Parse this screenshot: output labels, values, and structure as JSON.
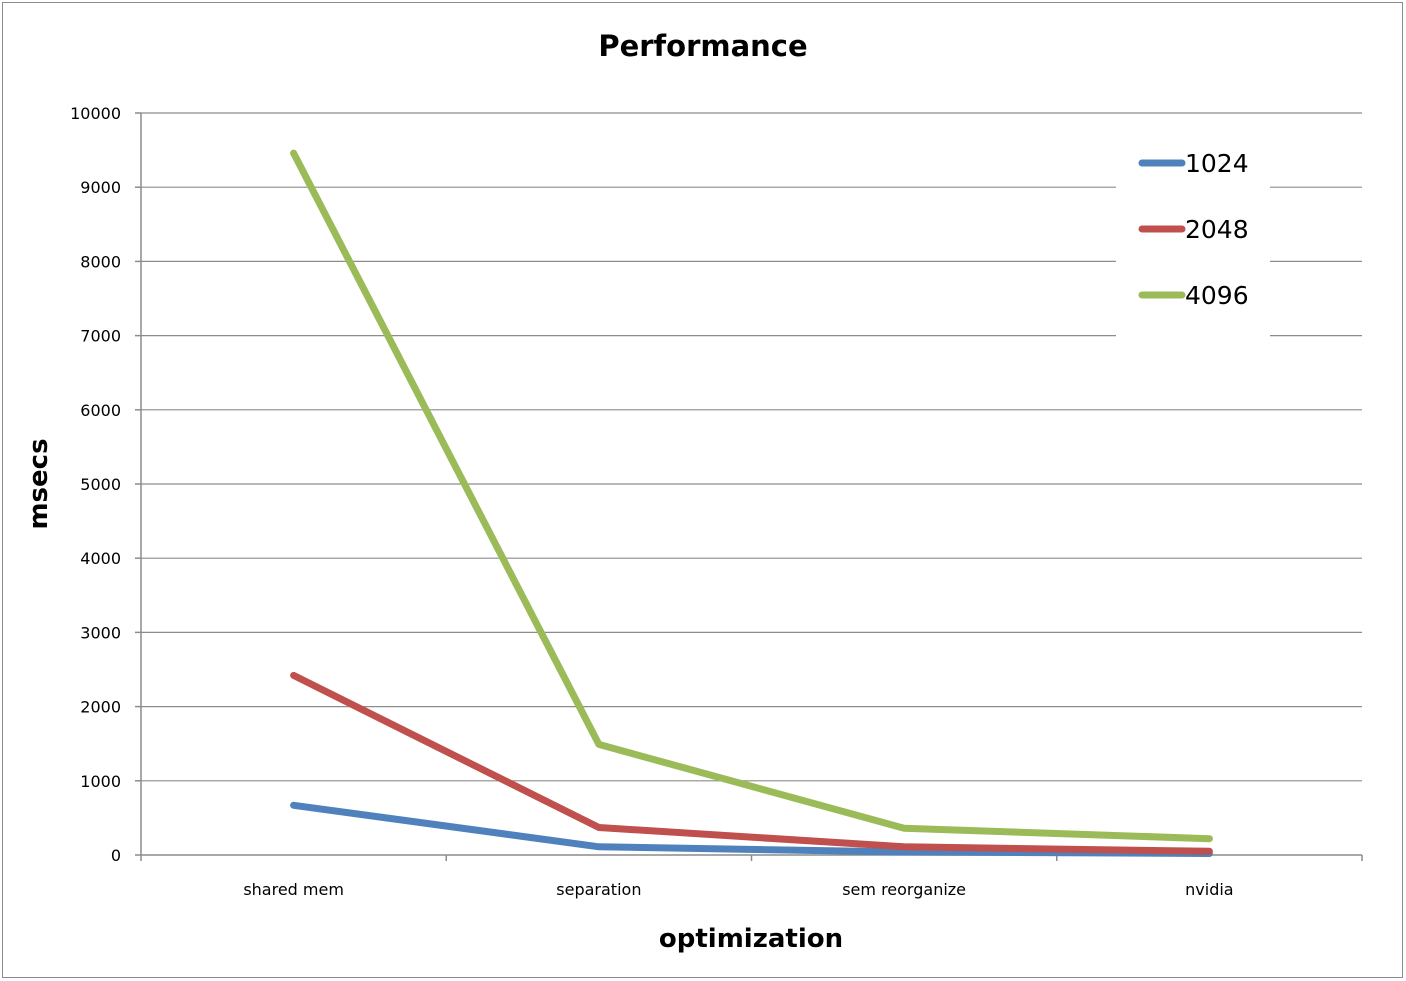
{
  "chart_data": {
    "type": "line",
    "title": "Performance",
    "xlabel": "optimization",
    "ylabel": "msecs",
    "categories": [
      "shared mem",
      "separation",
      "sem reorganize",
      "nvidia"
    ],
    "ylim": [
      0,
      10000
    ],
    "yticks": [
      0,
      1000,
      2000,
      3000,
      4000,
      5000,
      6000,
      7000,
      8000,
      9000,
      10000
    ],
    "grid": true,
    "legend_position": "top-right",
    "series": [
      {
        "name": "1024",
        "color": "#4f81bd",
        "values": [
          670,
          110,
          40,
          20
        ]
      },
      {
        "name": "2048",
        "color": "#c0504d",
        "values": [
          2420,
          370,
          110,
          50
        ]
      },
      {
        "name": "4096",
        "color": "#9bbb59",
        "values": [
          9460,
          1490,
          360,
          220
        ]
      }
    ]
  }
}
